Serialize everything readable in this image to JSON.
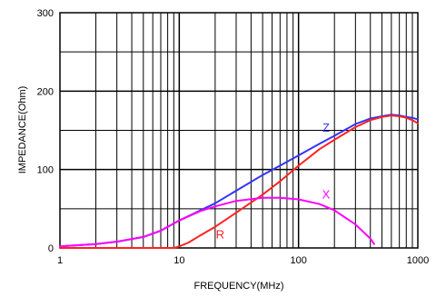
{
  "chart_data": {
    "type": "line",
    "xlabel": "FREQUENCY(MHz)",
    "ylabel": "IMPEDANCE(Ohm)",
    "xscale": "log",
    "xlim": [
      1,
      1000
    ],
    "ylim": [
      0,
      300
    ],
    "grid": true,
    "xticks": [
      1,
      10,
      100,
      1000
    ],
    "xtick_labels": [
      "1",
      "10",
      "100",
      "1000"
    ],
    "yticks": [
      0,
      100,
      200,
      300
    ],
    "ytick_labels": [
      "0",
      "100",
      "200",
      "300"
    ],
    "series": [
      {
        "name": "Z",
        "color": "#3333ff",
        "label_at": [
          170,
          148
        ],
        "points": [
          [
            1,
            2
          ],
          [
            2,
            5
          ],
          [
            3,
            8
          ],
          [
            5,
            14
          ],
          [
            7,
            22
          ],
          [
            10,
            35
          ],
          [
            15,
            48
          ],
          [
            20,
            57
          ],
          [
            30,
            73
          ],
          [
            50,
            93
          ],
          [
            70,
            105
          ],
          [
            100,
            118
          ],
          [
            150,
            133
          ],
          [
            200,
            143
          ],
          [
            300,
            158
          ],
          [
            400,
            165
          ],
          [
            500,
            168
          ],
          [
            600,
            170
          ],
          [
            700,
            169
          ],
          [
            800,
            167
          ],
          [
            900,
            166
          ],
          [
            1000,
            164
          ]
        ]
      },
      {
        "name": "R",
        "color": "#ff2222",
        "label_at": [
          22,
          12
        ],
        "points": [
          [
            1,
            0
          ],
          [
            5,
            0
          ],
          [
            9,
            0
          ],
          [
            10,
            2
          ],
          [
            12,
            7
          ],
          [
            15,
            16
          ],
          [
            20,
            27
          ],
          [
            30,
            45
          ],
          [
            50,
            68
          ],
          [
            70,
            85
          ],
          [
            100,
            105
          ],
          [
            150,
            126
          ],
          [
            200,
            138
          ],
          [
            300,
            154
          ],
          [
            400,
            163
          ],
          [
            500,
            167
          ],
          [
            600,
            169
          ],
          [
            700,
            168
          ],
          [
            800,
            166
          ],
          [
            900,
            163
          ],
          [
            1000,
            159
          ]
        ]
      },
      {
        "name": "X",
        "color": "#ff00ff",
        "label_at": [
          170,
          63
        ],
        "points": [
          [
            1,
            2
          ],
          [
            2,
            5
          ],
          [
            3,
            8
          ],
          [
            5,
            14
          ],
          [
            7,
            22
          ],
          [
            10,
            35
          ],
          [
            15,
            47
          ],
          [
            20,
            53
          ],
          [
            30,
            60
          ],
          [
            50,
            64
          ],
          [
            70,
            64
          ],
          [
            100,
            62
          ],
          [
            150,
            56
          ],
          [
            200,
            48
          ],
          [
            300,
            30
          ],
          [
            400,
            12
          ],
          [
            430,
            5
          ]
        ]
      }
    ]
  }
}
